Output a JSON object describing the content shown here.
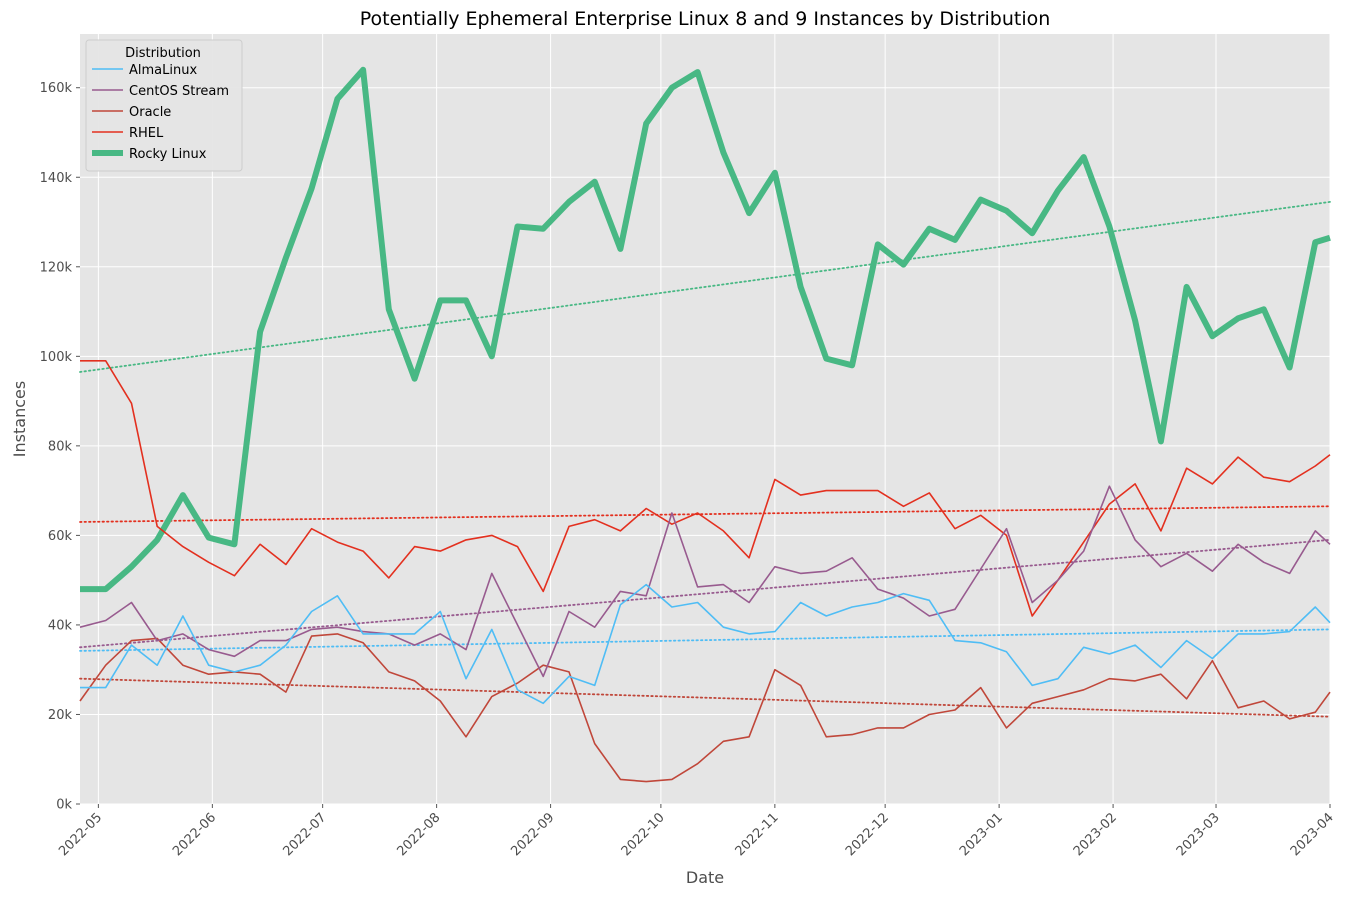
{
  "chart_data": {
    "type": "line",
    "title": "Potentially Ephemeral Enterprise Linux 8 and 9 Instances by Distribution",
    "xlabel": "Date",
    "ylabel": "Instances",
    "x_axis_type": "date",
    "xlim": [
      "2022-04-26",
      "2023-04-01"
    ],
    "ylim": [
      0,
      172000
    ],
    "grid": true,
    "background": "#e5e5e5",
    "x_ticks": [
      {
        "date": "2022-05-01",
        "label": "2022-05"
      },
      {
        "date": "2022-06-01",
        "label": "2022-06"
      },
      {
        "date": "2022-07-01",
        "label": "2022-07"
      },
      {
        "date": "2022-08-01",
        "label": "2022-08"
      },
      {
        "date": "2022-09-01",
        "label": "2022-09"
      },
      {
        "date": "2022-10-01",
        "label": "2022-10"
      },
      {
        "date": "2022-11-01",
        "label": "2022-11"
      },
      {
        "date": "2022-12-01",
        "label": "2022-12"
      },
      {
        "date": "2023-01-01",
        "label": "2023-01"
      },
      {
        "date": "2023-02-01",
        "label": "2023-02"
      },
      {
        "date": "2023-03-01",
        "label": "2023-03"
      },
      {
        "date": "2023-04-01",
        "label": "2023-04"
      }
    ],
    "y_ticks": [
      {
        "value": 0,
        "label": "0k"
      },
      {
        "value": 20000,
        "label": "20k"
      },
      {
        "value": 40000,
        "label": "40k"
      },
      {
        "value": 60000,
        "label": "60k"
      },
      {
        "value": 80000,
        "label": "80k"
      },
      {
        "value": 100000,
        "label": "100k"
      },
      {
        "value": 120000,
        "label": "120k"
      },
      {
        "value": 140000,
        "label": "140k"
      },
      {
        "value": 160000,
        "label": "160k"
      }
    ],
    "legend": {
      "title": "Distribution",
      "placement": "top-left"
    },
    "x": [
      "2022-04-26",
      "2022-05-03",
      "2022-05-10",
      "2022-05-17",
      "2022-05-24",
      "2022-05-31",
      "2022-06-07",
      "2022-06-14",
      "2022-06-21",
      "2022-06-28",
      "2022-07-05",
      "2022-07-12",
      "2022-07-19",
      "2022-07-26",
      "2022-08-02",
      "2022-08-09",
      "2022-08-16",
      "2022-08-23",
      "2022-08-30",
      "2022-09-06",
      "2022-09-13",
      "2022-09-20",
      "2022-09-27",
      "2022-10-04",
      "2022-10-11",
      "2022-10-18",
      "2022-10-25",
      "2022-11-01",
      "2022-11-08",
      "2022-11-15",
      "2022-11-22",
      "2022-11-29",
      "2022-12-06",
      "2022-12-13",
      "2022-12-20",
      "2022-12-27",
      "2023-01-03",
      "2023-01-10",
      "2023-01-17",
      "2023-01-24",
      "2023-01-31",
      "2023-02-07",
      "2023-02-14",
      "2023-02-21",
      "2023-02-28",
      "2023-03-07",
      "2023-03-14",
      "2023-03-21",
      "2023-03-28"
    ],
    "series": [
      {
        "name": "AlmaLinux",
        "color": "#4fbdf5",
        "line_width": 1.6,
        "values": [
          26000,
          26000,
          35500,
          31000,
          42000,
          31000,
          29500,
          31000,
          35500,
          43000,
          46500,
          38000,
          38000,
          38000,
          43000,
          28000,
          39000,
          25500,
          22500,
          28500,
          26500,
          44500,
          49000,
          44000,
          45000,
          39500,
          38000,
          38500,
          45000,
          42000,
          44000,
          45000,
          47000,
          45500,
          36500,
          36000,
          34000,
          26500,
          28000,
          35000,
          33500,
          35500,
          30500,
          36500,
          32500,
          38000,
          38000,
          38500,
          44000
        ],
        "end": {
          "date": "2023-04-01",
          "value": 40500
        },
        "trend": [
          34200,
          39000
        ]
      },
      {
        "name": "CentOS Stream",
        "color": "#985b8f",
        "line_width": 1.6,
        "values": [
          39500,
          41000,
          45000,
          36500,
          38000,
          34500,
          33000,
          36500,
          36500,
          39000,
          39500,
          38500,
          38000,
          35500,
          38000,
          34500,
          51500,
          40000,
          28500,
          43000,
          39500,
          47500,
          46500,
          65000,
          48500,
          49000,
          45000,
          53000,
          51500,
          52000,
          55000,
          48000,
          46000,
          42000,
          43500,
          52500,
          61500,
          45000,
          50000,
          56500,
          71000,
          59000,
          53000,
          56000,
          52000,
          58000,
          54000,
          51500,
          61000
        ],
        "end": {
          "date": "2023-04-01",
          "value": 58000
        },
        "trend": [
          35000,
          59000
        ]
      },
      {
        "name": "Oracle",
        "color": "#c0473a",
        "line_width": 1.6,
        "values": [
          23000,
          31000,
          36500,
          37000,
          31000,
          29000,
          29500,
          29000,
          25000,
          37500,
          38000,
          36000,
          29500,
          27500,
          23000,
          15000,
          24000,
          27000,
          31000,
          29500,
          13500,
          5500,
          5000,
          5500,
          9000,
          14000,
          15000,
          30000,
          26500,
          15000,
          15500,
          17000,
          17000,
          20000,
          21000,
          26000,
          17000,
          22500,
          24000,
          25500,
          28000,
          27500,
          29000,
          23500,
          32000,
          21500,
          23000,
          19000,
          20500
        ],
        "end": {
          "date": "2023-04-01",
          "value": 25000
        },
        "trend": [
          28000,
          19500
        ]
      },
      {
        "name": "RHEL",
        "color": "#e3301f",
        "line_width": 1.6,
        "values": [
          99000,
          99000,
          89500,
          62000,
          57500,
          54000,
          51000,
          58000,
          53500,
          61500,
          58500,
          56500,
          50500,
          57500,
          56500,
          59000,
          60000,
          57500,
          47500,
          62000,
          63500,
          61000,
          66000,
          62500,
          65000,
          61000,
          55000,
          72500,
          69000,
          70000,
          70000,
          70000,
          66500,
          69500,
          61500,
          64500,
          60000,
          42000,
          50000,
          58500,
          67000,
          71500,
          61000,
          75000,
          71500,
          77500,
          73000,
          72000,
          75500
        ],
        "end": {
          "date": "2023-04-01",
          "value": 78000
        },
        "trend": [
          63000,
          66500
        ]
      },
      {
        "name": "Rocky Linux",
        "color": "#48b884",
        "line_width": 6,
        "values": [
          48000,
          48000,
          53000,
          59000,
          69000,
          59500,
          58000,
          105500,
          122000,
          137500,
          157500,
          164000,
          110500,
          95000,
          112500,
          112500,
          100000,
          129000,
          128500,
          134500,
          139000,
          124000,
          152000,
          160000,
          163500,
          145500,
          132000,
          141000,
          115500,
          99500,
          98000,
          125000,
          120500,
          128500,
          126000,
          135000,
          132500,
          127500,
          137000,
          144500,
          129000,
          108000,
          81000,
          115500,
          104500,
          108500,
          110500,
          97500,
          125500
        ],
        "end": {
          "date": "2023-04-01",
          "value": 126500
        },
        "trend": [
          96500,
          134500
        ]
      }
    ]
  }
}
